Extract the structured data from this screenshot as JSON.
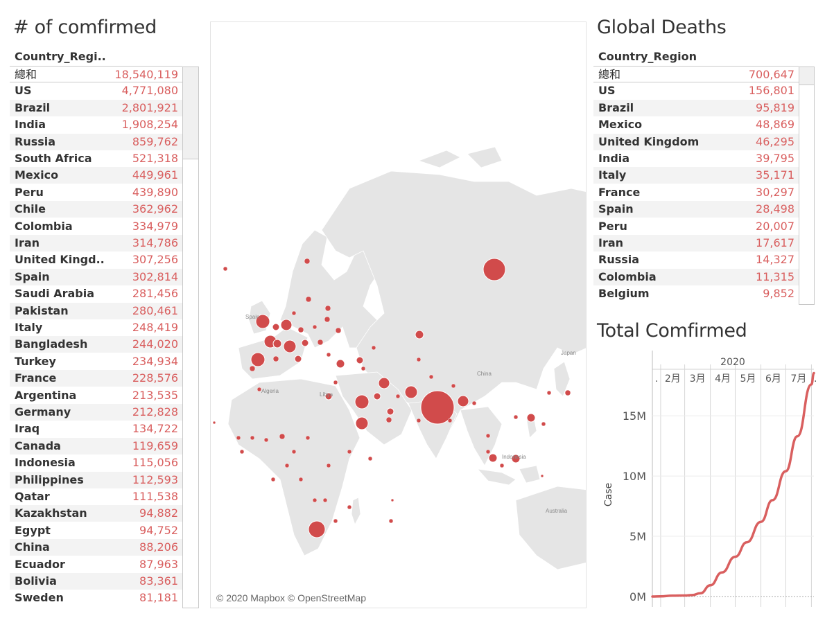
{
  "confirmed": {
    "title": "# of comfirmed",
    "column_header": "Country_Regi..",
    "total_label": "總和",
    "total_value": "18,540,119",
    "rows": [
      {
        "name": "US",
        "value": "4,771,080"
      },
      {
        "name": "Brazil",
        "value": "2,801,921"
      },
      {
        "name": "India",
        "value": "1,908,254"
      },
      {
        "name": "Russia",
        "value": "859,762"
      },
      {
        "name": "South Africa",
        "value": "521,318"
      },
      {
        "name": "Mexico",
        "value": "449,961"
      },
      {
        "name": "Peru",
        "value": "439,890"
      },
      {
        "name": "Chile",
        "value": "362,962"
      },
      {
        "name": "Colombia",
        "value": "334,979"
      },
      {
        "name": "Iran",
        "value": "314,786"
      },
      {
        "name": "United Kingd..",
        "value": "307,256"
      },
      {
        "name": "Spain",
        "value": "302,814"
      },
      {
        "name": "Saudi Arabia",
        "value": "281,456"
      },
      {
        "name": "Pakistan",
        "value": "280,461"
      },
      {
        "name": "Italy",
        "value": "248,419"
      },
      {
        "name": "Bangladesh",
        "value": "244,020"
      },
      {
        "name": "Turkey",
        "value": "234,934"
      },
      {
        "name": "France",
        "value": "228,576"
      },
      {
        "name": "Argentina",
        "value": "213,535"
      },
      {
        "name": "Germany",
        "value": "212,828"
      },
      {
        "name": "Iraq",
        "value": "134,722"
      },
      {
        "name": "Canada",
        "value": "119,659"
      },
      {
        "name": "Indonesia",
        "value": "115,056"
      },
      {
        "name": "Philippines",
        "value": "112,593"
      },
      {
        "name": "Qatar",
        "value": "111,538"
      },
      {
        "name": "Kazakhstan",
        "value": "94,882"
      },
      {
        "name": "Egypt",
        "value": "94,752"
      },
      {
        "name": "China",
        "value": "88,206"
      },
      {
        "name": "Ecuador",
        "value": "87,963"
      },
      {
        "name": "Bolivia",
        "value": "83,361"
      },
      {
        "name": "Sweden",
        "value": "81,181"
      }
    ]
  },
  "deaths": {
    "title": "Global Deaths",
    "column_header": "Country_Region",
    "total_label": "總和",
    "total_value": "700,647",
    "rows": [
      {
        "name": "US",
        "value": "156,801"
      },
      {
        "name": "Brazil",
        "value": "95,819"
      },
      {
        "name": "Mexico",
        "value": "48,869"
      },
      {
        "name": "United Kingdom",
        "value": "46,295"
      },
      {
        "name": "India",
        "value": "39,795"
      },
      {
        "name": "Italy",
        "value": "35,171"
      },
      {
        "name": "France",
        "value": "30,297"
      },
      {
        "name": "Spain",
        "value": "28,498"
      },
      {
        "name": "Peru",
        "value": "20,007"
      },
      {
        "name": "Iran",
        "value": "17,617"
      },
      {
        "name": "Russia",
        "value": "14,327"
      },
      {
        "name": "Colombia",
        "value": "11,315"
      },
      {
        "name": "Belgium",
        "value": "9,852"
      }
    ]
  },
  "map": {
    "credit": "© 2020 Mapbox © OpenStreetMap",
    "place_labels": [
      "Algeria",
      "Libya",
      "China",
      "Japan",
      "Indonesia",
      "Australia",
      "Spain"
    ],
    "bubble_color": "#d14b4b",
    "land_color": "#e5e5e5"
  },
  "chart_data": {
    "type": "line",
    "title": "Total Comfirmed",
    "year_label": "2020",
    "x": [
      "2020-01-22",
      "2020-02-01",
      "2020-02-15",
      "2020-03-01",
      "2020-03-10",
      "2020-03-20",
      "2020-04-01",
      "2020-04-15",
      "2020-05-01",
      "2020-05-15",
      "2020-06-01",
      "2020-06-15",
      "2020-07-01",
      "2020-07-15",
      "2020-08-01",
      "2020-08-04"
    ],
    "x_tick_labels": [
      ".",
      "2月",
      "3月",
      "4月",
      "5月",
      "6月",
      "7月",
      "."
    ],
    "y": [
      0,
      12000,
      69000,
      88000,
      120000,
      270000,
      930000,
      2000000,
      3300000,
      4500000,
      6200000,
      8000000,
      10400000,
      13300000,
      17600000,
      18540119
    ],
    "ylabel": "Case",
    "y_tick_labels": [
      "0M",
      "5M",
      "10M",
      "15M"
    ],
    "ylim": [
      0,
      18800000
    ],
    "series_color": "#d95f5f",
    "grid": true
  }
}
